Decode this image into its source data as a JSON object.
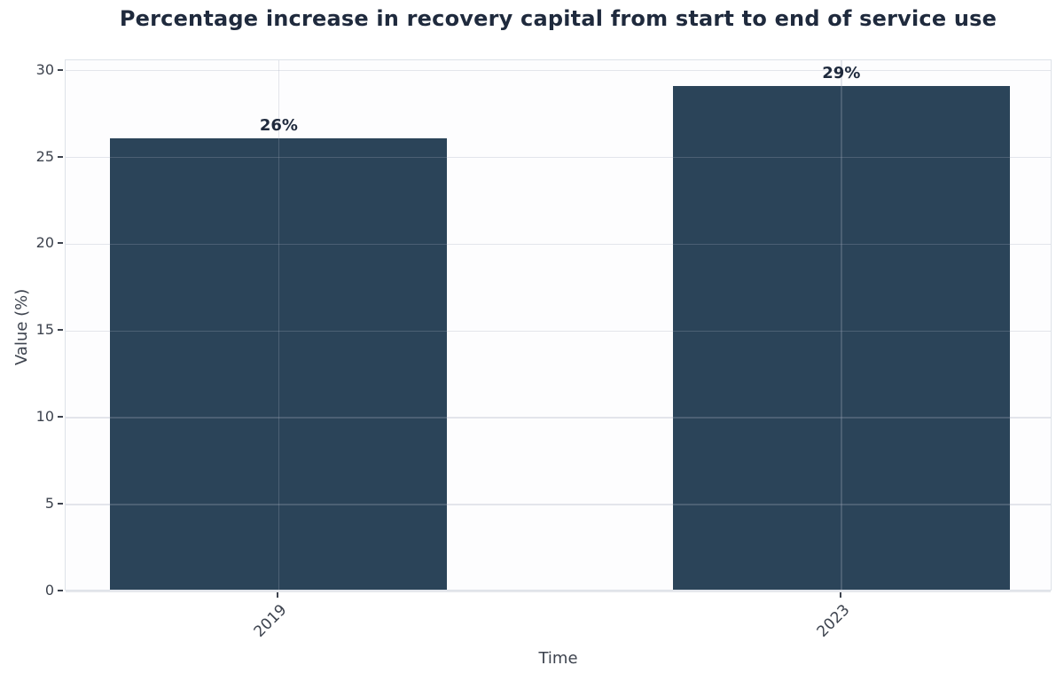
{
  "chart_data": {
    "type": "bar",
    "title": "Percentage increase in recovery capital from start to end of service use",
    "xlabel": "Time",
    "ylabel": "Value (%)",
    "categories": [
      "2019",
      "2023"
    ],
    "values": [
      26,
      29
    ],
    "bar_labels": [
      "26%",
      "29%"
    ],
    "yticks": [
      0,
      5,
      10,
      15,
      20,
      25,
      30
    ],
    "ylim": [
      0,
      30.6
    ],
    "grid": true,
    "legend": "none",
    "colors": {
      "bar": "#2b4459",
      "title_text": "#1f2a3d",
      "tick_text": "#3d434e",
      "grid_line": "#a0aab9",
      "grid_opacity": 0.28,
      "spine": "#dde2e8",
      "background": "#ffffff"
    }
  }
}
